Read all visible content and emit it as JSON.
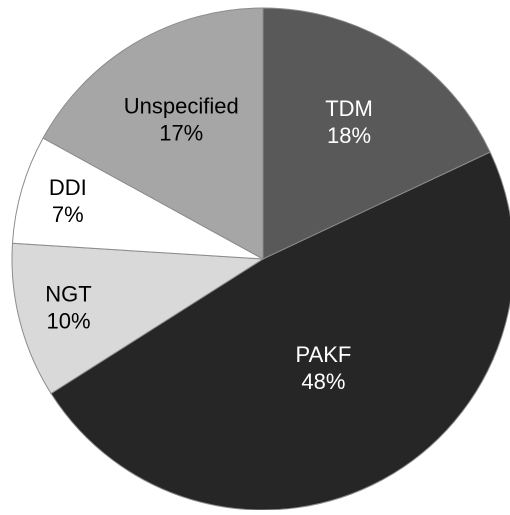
{
  "chart_data": {
    "type": "pie",
    "categories": [
      "TDM",
      "PAKF",
      "NGT",
      "DDI",
      "Unspecified"
    ],
    "values": [
      18,
      48,
      10,
      7,
      17
    ],
    "value_labels": [
      "18%",
      "48%",
      "10%",
      "7%",
      "17%"
    ],
    "colors": [
      "#595959",
      "#262626",
      "#d9d9d9",
      "#ffffff",
      "#a6a6a6"
    ],
    "label_colors": [
      "#ffffff",
      "#ffffff",
      "#000000",
      "#000000",
      "#000000"
    ]
  }
}
